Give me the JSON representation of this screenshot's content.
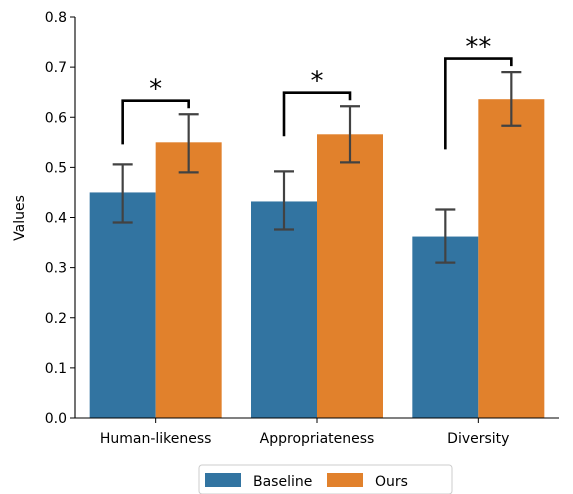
{
  "chart_data": {
    "type": "bar",
    "title": "",
    "xlabel": "",
    "ylabel": "Values",
    "ylim": [
      0,
      0.8
    ],
    "yticks": [
      "0.0",
      "0.1",
      "0.2",
      "0.3",
      "0.4",
      "0.5",
      "0.6",
      "0.7",
      "0.8"
    ],
    "grid": false,
    "legend_position": "bottom-center",
    "categories": [
      "Human-likeness",
      "Appropriateness",
      "Diversity"
    ],
    "series": [
      {
        "name": "Baseline",
        "color": "#3274a1",
        "values": [
          0.45,
          0.432,
          0.362
        ],
        "error_low": [
          0.39,
          0.376,
          0.31
        ],
        "error_high": [
          0.506,
          0.492,
          0.416
        ]
      },
      {
        "name": "Ours",
        "color": "#e1812c",
        "values": [
          0.55,
          0.566,
          0.636
        ],
        "error_low": [
          0.49,
          0.51,
          0.583
        ],
        "error_high": [
          0.606,
          0.622,
          0.69
        ]
      }
    ],
    "annotations": [
      {
        "category": "Human-likeness",
        "text": "*"
      },
      {
        "category": "Appropriateness",
        "text": "*"
      },
      {
        "category": "Diversity",
        "text": "**"
      }
    ]
  }
}
